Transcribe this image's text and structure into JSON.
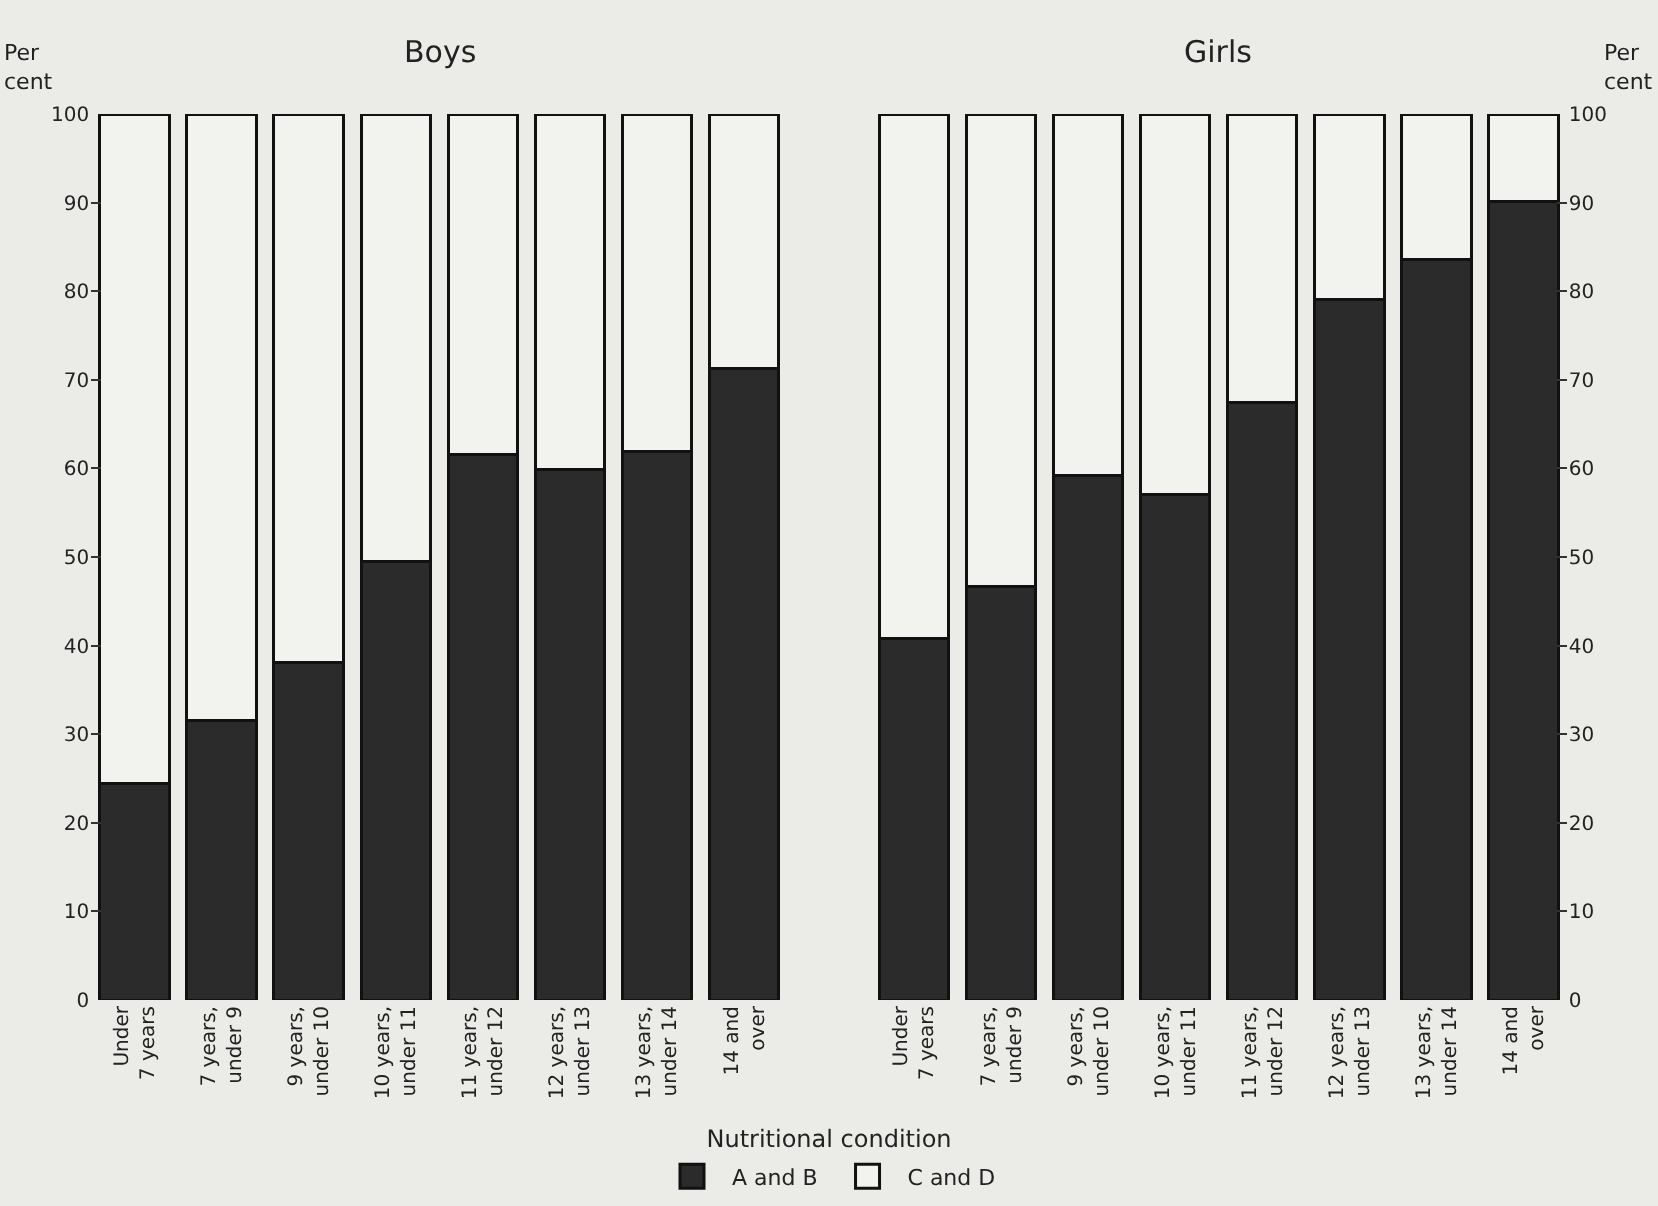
{
  "chart_data": [
    {
      "type": "bar",
      "title": "Boys",
      "ylabel": "Per cent",
      "stacked": true,
      "legend": false,
      "categories": [
        "Under 7 years",
        "7 years, under 9",
        "9 years, under 10",
        "10 years, under 11",
        "11 years, under 12",
        "12 years, under 13",
        "13 years, under 14",
        "14 and over"
      ],
      "series": [
        {
          "color": "#2b2b2b",
          "values": [
            24.4,
            31.5,
            38.1,
            49.5,
            61.6,
            59.9,
            61.9,
            71.3
          ]
        },
        {
          "color": "#f2f2ef",
          "values": [
            75.6,
            68.5,
            61.9,
            50.5,
            38.4,
            40.1,
            38.1,
            28.7
          ]
        }
      ],
      "ylim": [
        0,
        100
      ],
      "yticks": [
        0,
        10,
        20,
        30,
        40,
        50,
        60,
        70,
        80,
        90,
        100
      ],
      "grid": false
    },
    {
      "type": "bar",
      "title": "Girls",
      "ylabel": "Per cent",
      "stacked": true,
      "legend": "bottom",
      "legend_title": "Nutritional condition",
      "categories": [
        "Under 7 years",
        "7 years, under 9",
        "9 years, under 10",
        "10 years, under 11",
        "11 years, under 12",
        "12 years, under 13",
        "13 years, under 14",
        "14 and over"
      ],
      "series": [
        {
          "name": "A and B",
          "color": "#2b2b2b",
          "values": [
            40.8,
            46.7,
            59.2,
            57.0,
            67.4,
            79.1,
            83.6,
            90.1
          ]
        },
        {
          "name": "C and D",
          "color": "#f2f2ef",
          "values": [
            59.2,
            53.3,
            40.8,
            43.0,
            32.6,
            20.9,
            16.4,
            9.9
          ]
        }
      ],
      "ylim": [
        0,
        100
      ],
      "yticks": [
        0,
        10,
        20,
        30,
        40,
        50,
        60,
        70,
        80,
        90,
        100
      ],
      "grid": false
    }
  ]
}
